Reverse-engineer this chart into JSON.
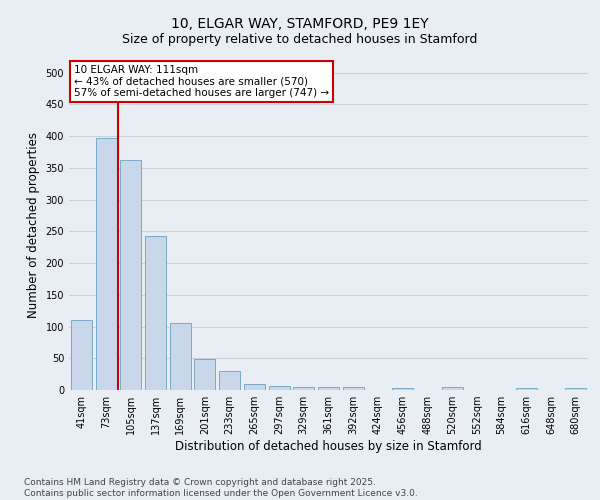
{
  "title_line1": "10, ELGAR WAY, STAMFORD, PE9 1EY",
  "title_line2": "Size of property relative to detached houses in Stamford",
  "xlabel": "Distribution of detached houses by size in Stamford",
  "ylabel": "Number of detached properties",
  "categories": [
    "41sqm",
    "73sqm",
    "105sqm",
    "137sqm",
    "169sqm",
    "201sqm",
    "233sqm",
    "265sqm",
    "297sqm",
    "329sqm",
    "361sqm",
    "392sqm",
    "424sqm",
    "456sqm",
    "488sqm",
    "520sqm",
    "552sqm",
    "584sqm",
    "616sqm",
    "648sqm",
    "680sqm"
  ],
  "values": [
    111,
    397,
    363,
    242,
    105,
    49,
    30,
    9,
    7,
    5,
    5,
    5,
    0,
    3,
    0,
    5,
    0,
    0,
    3,
    0,
    3
  ],
  "bar_color": "#c8d8ea",
  "bar_edge_color": "#7aaac8",
  "vline_color": "#cc0000",
  "vline_pos": 1.5,
  "annotation_text": "10 ELGAR WAY: 111sqm\n← 43% of detached houses are smaller (570)\n57% of semi-detached houses are larger (747) →",
  "annotation_box_color": "white",
  "annotation_box_edge_color": "#cc0000",
  "ylim": [
    0,
    520
  ],
  "yticks": [
    0,
    50,
    100,
    150,
    200,
    250,
    300,
    350,
    400,
    450,
    500
  ],
  "footer_text": "Contains HM Land Registry data © Crown copyright and database right 2025.\nContains public sector information licensed under the Open Government Licence v3.0.",
  "background_color": "#e8eef4",
  "plot_bg_color": "#e8eef4",
  "grid_color": "#c8d0d8",
  "title_fontsize": 10,
  "subtitle_fontsize": 9,
  "axis_label_fontsize": 8.5,
  "tick_fontsize": 7,
  "annotation_fontsize": 7.5,
  "footer_fontsize": 6.5
}
